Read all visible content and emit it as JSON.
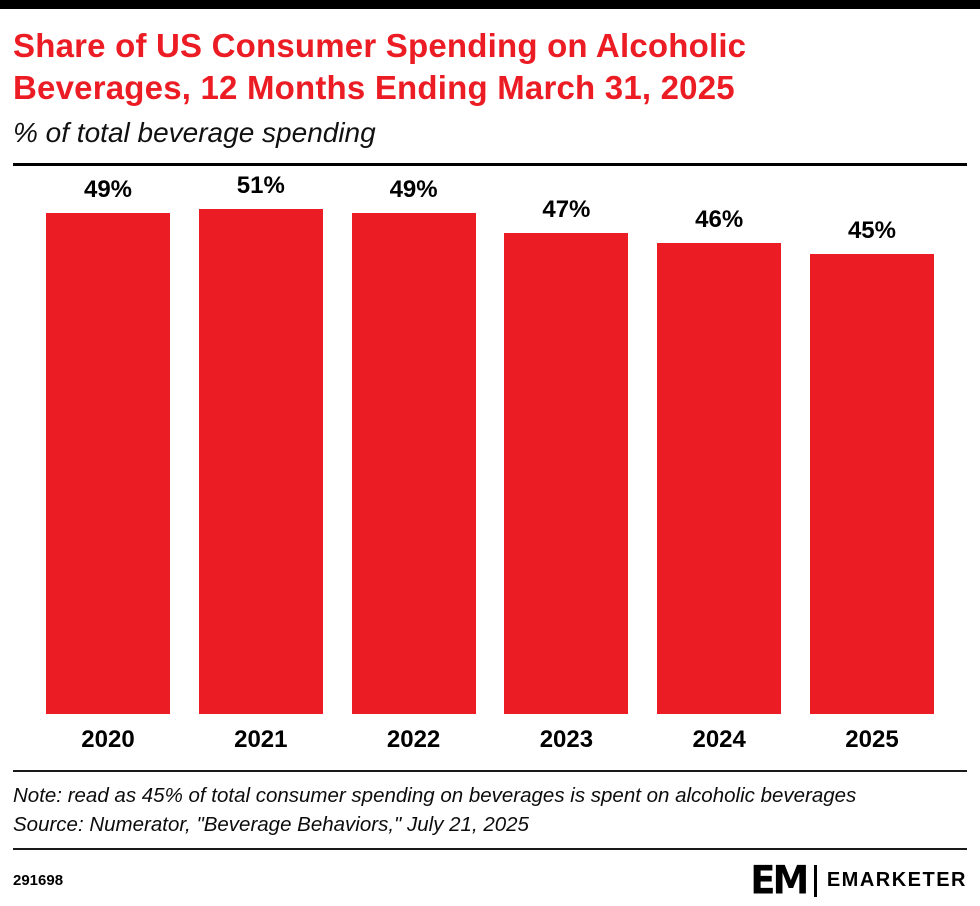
{
  "header": {
    "title": "Share of US Consumer Spending on Alcoholic Beverages, 12 Months Ending March 31, 2025",
    "subtitle": "% of total beverage spending"
  },
  "chart_data": {
    "type": "bar",
    "categories": [
      "2020",
      "2021",
      "2022",
      "2023",
      "2024",
      "2025"
    ],
    "values": [
      49,
      51,
      49,
      47,
      46,
      45
    ],
    "value_labels": [
      "49%",
      "51%",
      "49%",
      "47%",
      "46%",
      "45%"
    ],
    "title": "Share of US Consumer Spending on Alcoholic Beverages, 12 Months Ending March 31, 2025",
    "xlabel": "",
    "ylabel": "% of total beverage spending",
    "ylim": [
      0,
      53
    ],
    "grid": false,
    "legend": false,
    "bar_color": "#ec1c24"
  },
  "footnote": {
    "note": "Note: read as 45% of total consumer spending on beverages is spent on alcoholic beverages",
    "source": "Source: Numerator, \"Beverage Behaviors,\" July 21, 2025"
  },
  "footer": {
    "chart_id": "291698",
    "logo_mark": "EM",
    "brand": "EMARKETER"
  },
  "colors": {
    "accent_red": "#ec1c24",
    "text_black": "#000000"
  }
}
